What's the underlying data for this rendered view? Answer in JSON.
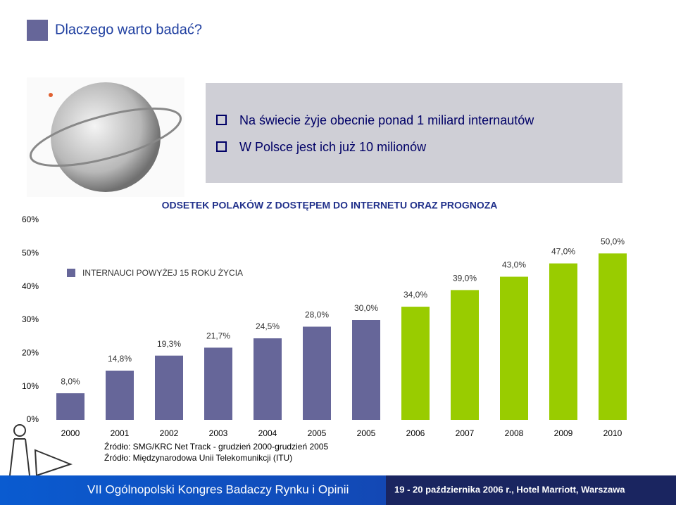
{
  "header": {
    "title": "Dlaczego warto badać?"
  },
  "bullets": [
    "Na świecie żyje obecnie ponad 1 miliard internautów",
    "W Polsce jest ich już 10 milionów"
  ],
  "chart_data": {
    "type": "bar",
    "title": "ODSETEK POLAKÓW Z DOSTĘPEM DO INTERNETU ORAZ PROGNOZA",
    "categories": [
      "2000",
      "2001",
      "2002",
      "2003",
      "2004",
      "2005",
      "2005",
      "2006",
      "2007",
      "2008",
      "2009",
      "2010"
    ],
    "values": [
      8.0,
      14.8,
      19.3,
      21.7,
      24.5,
      28.0,
      30.0,
      34.0,
      39.0,
      43.0,
      47.0,
      50.0
    ],
    "value_labels": [
      "8,0%",
      "14,8%",
      "19,3%",
      "21,7%",
      "24,5%",
      "28,0%",
      "30,0%",
      "34,0%",
      "39,0%",
      "43,0%",
      "47,0%",
      "50,0%"
    ],
    "colors": [
      "#666699",
      "#666699",
      "#666699",
      "#666699",
      "#666699",
      "#666699",
      "#666699",
      "#99cc00",
      "#99cc00",
      "#99cc00",
      "#99cc00",
      "#99cc00"
    ],
    "legend": {
      "label": "INTERNAUCI POWYŻEJ 15 ROKU ŻYCIA",
      "color": "#666699"
    },
    "ylim": [
      0,
      60
    ],
    "yticks": [
      {
        "value": 0,
        "label": "0%"
      },
      {
        "value": 10,
        "label": "10%"
      },
      {
        "value": 20,
        "label": "20%"
      },
      {
        "value": 30,
        "label": "30%"
      },
      {
        "value": 40,
        "label": "40%"
      },
      {
        "value": 50,
        "label": "50%"
      },
      {
        "value": 60,
        "label": "60%"
      }
    ],
    "grid": false
  },
  "sources": [
    "Źródło: SMG/KRC Net Track - grudzień 2000-grudzień 2005",
    "Źródło: Międzynarodowa Unii Telekomunikcji (ITU)"
  ],
  "footer": {
    "event": "VII Ogólnopolski Kongres Badaczy Rynku i Opinii",
    "date": "19 - 20 października 2006 r., Hotel Marriott, Warszawa"
  }
}
